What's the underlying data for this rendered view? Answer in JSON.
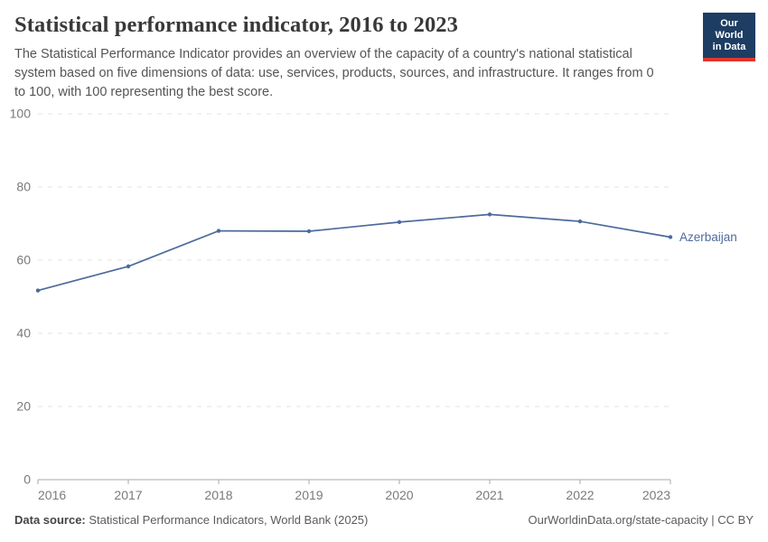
{
  "header": {
    "title": "Statistical performance indicator, 2016 to 2023",
    "subtitle": "The Statistical Performance Indicator provides an overview of the capacity of a country's national statistical system based on five dimensions of data: use, services, products, sources, and infrastructure. It ranges from 0 to 100, with 100 representing the best score.",
    "logo": {
      "line1": "Our World",
      "line2": "in Data"
    }
  },
  "chart_data": {
    "type": "line",
    "title": "Statistical performance indicator, 2016 to 2023",
    "x": [
      2016,
      2017,
      2018,
      2019,
      2020,
      2021,
      2022,
      2023
    ],
    "series": [
      {
        "name": "Azerbaijan",
        "color": "#4C6A9C",
        "values": [
          51.7,
          58.3,
          68.0,
          67.9,
          70.4,
          72.5,
          70.6,
          66.3
        ]
      }
    ],
    "xlabel": "",
    "ylabel": "",
    "ylim": [
      0,
      100
    ],
    "yticks": [
      0,
      20,
      40,
      60,
      80,
      100
    ],
    "grid": "horizontal-dashed",
    "legend": "end-of-line-label"
  },
  "footer": {
    "datasource_label": "Data source:",
    "datasource_text": " Statistical Performance Indicators, World Bank (2025)",
    "link_text": "OurWorldinData.org/state-capacity | CC BY"
  },
  "colors": {
    "accent": "#4C6A9C",
    "gridline": "#e3e3e3",
    "axis": "#a9a9a9",
    "tick_label": "#7a7a7a",
    "logo_bg": "#1d3d63",
    "logo_red": "#e0362c"
  }
}
